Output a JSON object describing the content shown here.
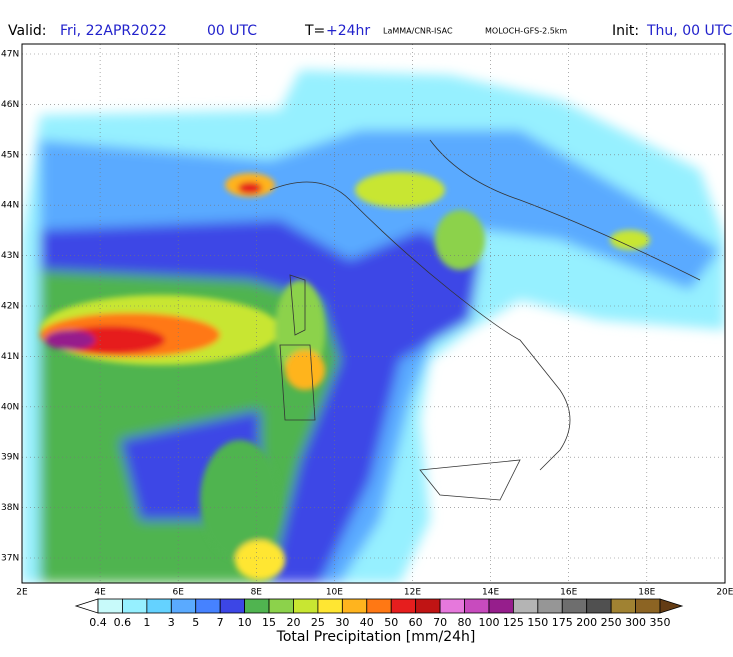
{
  "header": {
    "valid_label": "Valid:",
    "valid_date": "Fri, 22APR2022",
    "valid_time": "00 UTC",
    "lead_label": "T=",
    "lead_value": "+24hr",
    "source": "LaMMA/CNR-ISAC",
    "model": "MOLOCH-GFS-2.5km",
    "init_label": "Init:",
    "init_value": "Thu, 00 UTC"
  },
  "map": {
    "lat_labels": [
      "47N",
      "46N",
      "45N",
      "44N",
      "43N",
      "42N",
      "41N",
      "40N",
      "39N",
      "38N",
      "37N"
    ],
    "lon_labels": [
      "2E",
      "4E",
      "6E",
      "8E",
      "10E",
      "12E",
      "14E",
      "16E",
      "18E",
      "20E"
    ]
  },
  "colorbar": {
    "title": "Total Precipitation [mm/24h]",
    "levels": [
      0.4,
      0.6,
      1,
      3,
      5,
      7,
      10,
      15,
      20,
      25,
      30,
      40,
      50,
      60,
      70,
      80,
      100,
      125,
      150,
      175,
      200,
      250,
      300,
      350
    ],
    "colors": [
      "#ffffff",
      "#c8fafa",
      "#96f0ff",
      "#64d2ff",
      "#5aaaff",
      "#4682ff",
      "#3c46e6",
      "#50b450",
      "#8cd24b",
      "#c8e632",
      "#ffe632",
      "#ffb41e",
      "#ff7814",
      "#e61e1e",
      "#c01414",
      "#e678dc",
      "#c84bbe",
      "#961e8c",
      "#b4b4b4",
      "#969696",
      "#6e6e6e",
      "#505050",
      "#a08232",
      "#8c6423",
      "#643c14"
    ]
  }
}
